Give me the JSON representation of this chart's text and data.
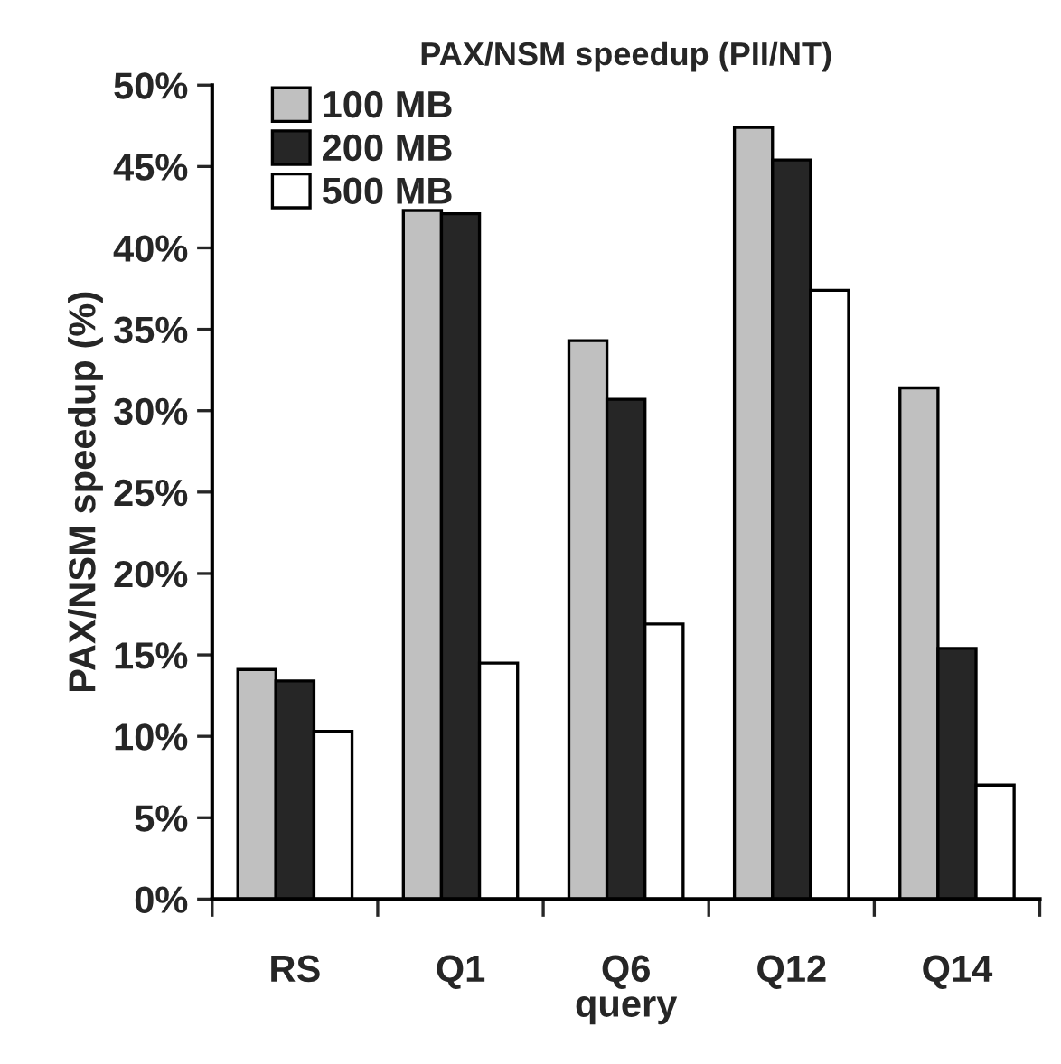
{
  "chart_data": {
    "type": "bar",
    "title": "PAX/NSM speedup (PII/NT)",
    "xlabel": "query",
    "ylabel": "PAX/NSM speedup (%)",
    "categories": [
      "RS",
      "Q1",
      "Q6",
      "Q12",
      "Q14"
    ],
    "series": [
      {
        "name": "100 MB",
        "color": "#c0c0c0",
        "values": [
          14.1,
          42.3,
          34.3,
          47.4,
          31.4
        ]
      },
      {
        "name": "200 MB",
        "color": "#262626",
        "values": [
          13.4,
          42.1,
          30.7,
          45.4,
          15.4
        ]
      },
      {
        "name": "500 MB",
        "color": "#ffffff",
        "values": [
          10.3,
          14.5,
          16.9,
          37.4,
          7.0
        ]
      }
    ],
    "ylim": [
      0,
      50
    ],
    "yticks": [
      {
        "value": 0,
        "label": "0%"
      },
      {
        "value": 5,
        "label": "5%"
      },
      {
        "value": 10,
        "label": "10%"
      },
      {
        "value": 15,
        "label": "15%"
      },
      {
        "value": 20,
        "label": "20%"
      },
      {
        "value": 25,
        "label": "25%"
      },
      {
        "value": 30,
        "label": "30%"
      },
      {
        "value": 35,
        "label": "35%"
      },
      {
        "value": 40,
        "label": "40%"
      },
      {
        "value": 45,
        "label": "45%"
      },
      {
        "value": 50,
        "label": "50%"
      }
    ],
    "grid": false,
    "legend": "top left"
  }
}
